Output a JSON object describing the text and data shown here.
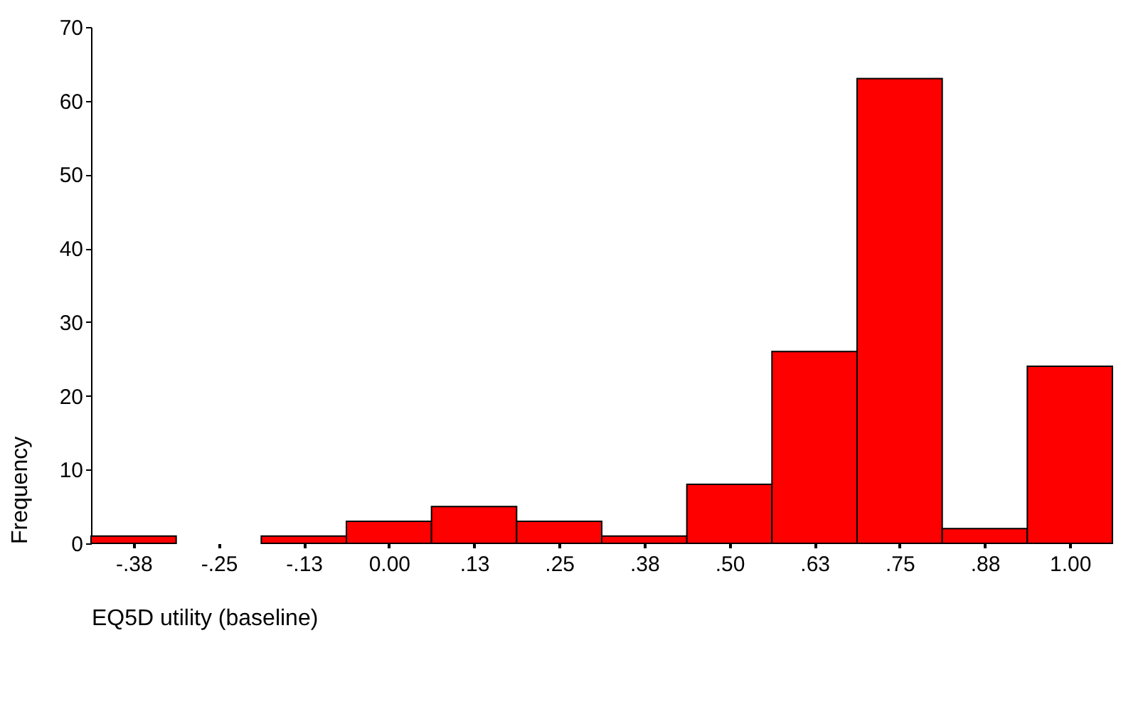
{
  "chart_data": {
    "type": "histogram",
    "xlabel": "EQ5D utility (baseline)",
    "ylabel": "Frequency",
    "color": "#ff0000",
    "bins": [
      -0.4375,
      -0.3125,
      -0.1875,
      -0.0625,
      0.0625,
      0.1875,
      0.3125,
      0.4375,
      0.5625,
      0.6875,
      0.8125,
      0.9375,
      1.0625
    ],
    "values": [
      1,
      0,
      1,
      3,
      5,
      3,
      1,
      8,
      26,
      63,
      2,
      24
    ],
    "xlim": [
      -0.4375,
      1.0625
    ],
    "xticks": [
      {
        "value": -0.375,
        "label": "-.38"
      },
      {
        "value": -0.25,
        "label": "-.25"
      },
      {
        "value": -0.125,
        "label": "-.13"
      },
      {
        "value": 0,
        "label": "0.00"
      },
      {
        "value": 0.125,
        "label": ".13"
      },
      {
        "value": 0.25,
        "label": ".25"
      },
      {
        "value": 0.375,
        "label": ".38"
      },
      {
        "value": 0.5,
        "label": ".50"
      },
      {
        "value": 0.625,
        "label": ".63"
      },
      {
        "value": 0.75,
        "label": ".75"
      },
      {
        "value": 0.875,
        "label": ".88"
      },
      {
        "value": 1,
        "label": "1.00"
      }
    ],
    "ylim": [
      0,
      70
    ],
    "yticks": [
      0,
      10,
      20,
      30,
      40,
      50,
      60,
      70
    ],
    "grid": false
  }
}
